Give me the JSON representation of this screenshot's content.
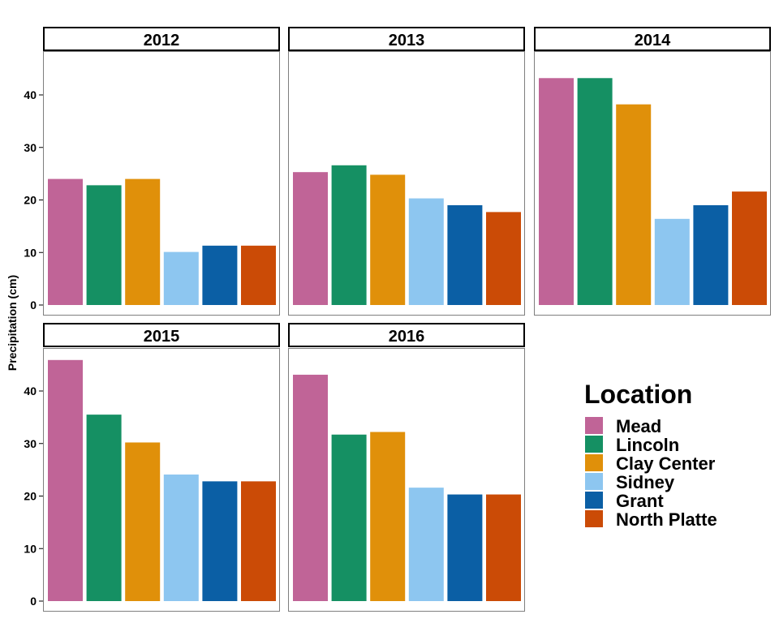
{
  "chart_data": {
    "type": "bar",
    "ylabel": "Precipitation (cm)",
    "ylim": [
      0,
      48
    ],
    "yticks": [
      0,
      10,
      20,
      30,
      40
    ],
    "grid": false,
    "legend": {
      "title": "Location",
      "placement": "right"
    },
    "categories": [
      "Mead",
      "Lincoln",
      "Clay Center",
      "Sidney",
      "Grant",
      "North Platte"
    ],
    "colors": [
      "#C06497",
      "#159063",
      "#E0900A",
      "#8DC6F0",
      "#0B5FA5",
      "#CB4B06"
    ],
    "panels": [
      {
        "title": "2012",
        "values": [
          24.0,
          22.8,
          24.0,
          10.1,
          11.3,
          11.3
        ]
      },
      {
        "title": "2013",
        "values": [
          25.3,
          26.6,
          24.8,
          20.3,
          19.0,
          17.7
        ]
      },
      {
        "title": "2014",
        "values": [
          43.2,
          43.2,
          38.2,
          16.4,
          19.0,
          21.6
        ]
      },
      {
        "title": "2015",
        "values": [
          45.9,
          35.5,
          30.2,
          24.1,
          22.8,
          22.8
        ]
      },
      {
        "title": "2016",
        "values": [
          43.1,
          31.7,
          32.2,
          21.6,
          20.3,
          20.3
        ]
      }
    ]
  }
}
